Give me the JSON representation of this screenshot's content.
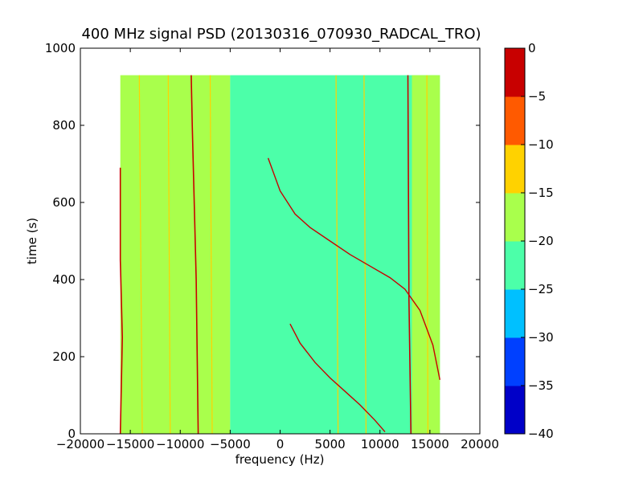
{
  "chart_data": {
    "type": "heatmap",
    "title": "400 MHz signal PSD (20130316_070930_RADCAL_TRO)",
    "xlabel": "frequency (Hz)",
    "ylabel": "time (s)",
    "xlim": [
      -20000,
      20000
    ],
    "ylim": [
      0,
      1000
    ],
    "xticks": [
      -20000,
      -15000,
      -10000,
      -5000,
      0,
      5000,
      10000,
      15000,
      20000
    ],
    "xtick_labels": [
      "−20000",
      "−15000",
      "−10000",
      "−5000",
      "0",
      "5000",
      "10000",
      "15000",
      "20000"
    ],
    "yticks": [
      0,
      200,
      400,
      600,
      800,
      1000
    ],
    "ytick_labels": [
      "0",
      "200",
      "400",
      "600",
      "800",
      "1000"
    ],
    "data_extent": {
      "freq": [
        -16000,
        16000
      ],
      "time": [
        0,
        930
      ]
    },
    "colorbar": {
      "levels": [
        -40,
        -35,
        -30,
        -25,
        -20,
        -15,
        -10,
        -5,
        0
      ],
      "tick_labels": [
        "−40",
        "−35",
        "−30",
        "−25",
        "−20",
        "−15",
        "−10",
        "−5",
        "0"
      ],
      "colors": [
        "#0000c8",
        "#0040ff",
        "#00c0ff",
        "#4cffa9",
        "#a9ff4c",
        "#ffd200",
        "#ff5a00",
        "#c80000"
      ]
    },
    "background_regions": [
      {
        "freq": [
          -16000,
          -5000
        ],
        "time": [
          0,
          930
        ],
        "level_db": -17.5
      },
      {
        "freq": [
          -5000,
          16000
        ],
        "time": [
          0,
          930
        ],
        "level_db": -22.5
      },
      {
        "freq": [
          13200,
          16000
        ],
        "time": [
          0,
          930
        ],
        "level_db": -17.5
      }
    ],
    "vertical_lines": [
      {
        "name": "carrier-left-edge",
        "level_db": -2.5,
        "points": [
          [
            -16000,
            0
          ],
          [
            -15800,
            250
          ],
          [
            -16000,
            450
          ],
          [
            -16000,
            690
          ]
        ]
      },
      {
        "name": "carrier-1",
        "level_db": -2.5,
        "points": [
          [
            -8200,
            0
          ],
          [
            -8400,
            400
          ],
          [
            -8800,
            800
          ],
          [
            -8900,
            930
          ]
        ]
      },
      {
        "name": "carrier-2",
        "level_db": -2.5,
        "points": [
          [
            13100,
            0
          ],
          [
            12900,
            350
          ],
          [
            12800,
            930
          ]
        ]
      },
      {
        "name": "line-a",
        "level_db": -12.5,
        "points": [
          [
            -13800,
            0
          ],
          [
            -14100,
            930
          ]
        ]
      },
      {
        "name": "line-b",
        "level_db": -12.5,
        "points": [
          [
            -11000,
            0
          ],
          [
            -11200,
            930
          ]
        ]
      },
      {
        "name": "line-c",
        "level_db": -12.5,
        "points": [
          [
            -6800,
            0
          ],
          [
            -7000,
            930
          ]
        ]
      },
      {
        "name": "line-d",
        "level_db": -12.5,
        "points": [
          [
            5800,
            0
          ],
          [
            5600,
            930
          ]
        ]
      },
      {
        "name": "line-e",
        "level_db": -12.5,
        "points": [
          [
            8600,
            0
          ],
          [
            8400,
            930
          ]
        ]
      },
      {
        "name": "line-f",
        "level_db": -12.5,
        "points": [
          [
            14800,
            0
          ],
          [
            14700,
            930
          ]
        ]
      }
    ],
    "sweeps": [
      {
        "name": "sweep-lower",
        "level_db": -2.5,
        "points": [
          [
            1000,
            285
          ],
          [
            2000,
            235
          ],
          [
            3500,
            185
          ],
          [
            5000,
            145
          ],
          [
            6500,
            110
          ],
          [
            8000,
            75
          ],
          [
            9500,
            35
          ],
          [
            10500,
            5
          ]
        ]
      },
      {
        "name": "sweep-upper",
        "level_db": -2.5,
        "points": [
          [
            -1200,
            715
          ],
          [
            0,
            630
          ],
          [
            1500,
            570
          ],
          [
            3000,
            535
          ],
          [
            5000,
            500
          ],
          [
            7000,
            465
          ],
          [
            9000,
            435
          ],
          [
            11000,
            405
          ],
          [
            12500,
            375
          ],
          [
            14000,
            320
          ],
          [
            15300,
            230
          ],
          [
            16000,
            140
          ]
        ]
      }
    ]
  }
}
